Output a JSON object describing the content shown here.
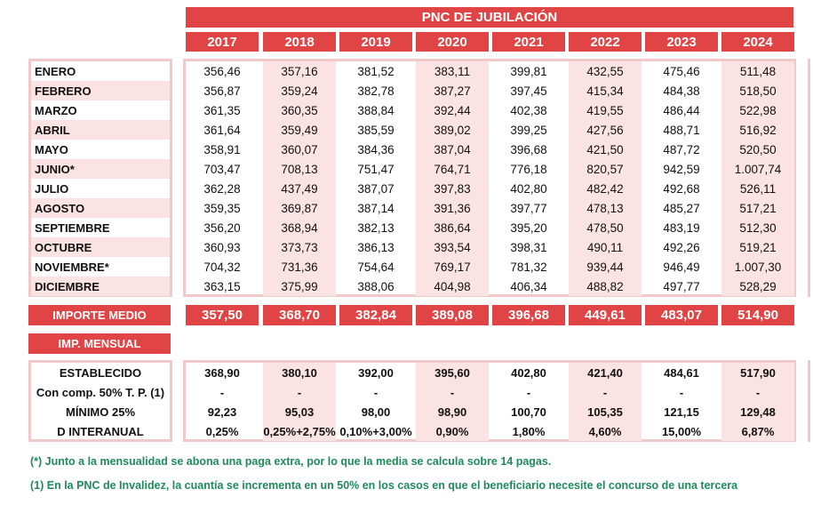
{
  "title": "PNC DE JUBILACIÓN",
  "years": [
    "2017",
    "2018",
    "2019",
    "2020",
    "2021",
    "2022",
    "2023",
    "2024"
  ],
  "months": [
    {
      "label": "ENERO",
      "values": [
        "356,46",
        "357,16",
        "381,52",
        "383,11",
        "399,81",
        "432,55",
        "475,46",
        "511,48"
      ]
    },
    {
      "label": "FEBRERO",
      "values": [
        "356,87",
        "359,24",
        "382,78",
        "387,27",
        "397,45",
        "415,34",
        "484,38",
        "518,50"
      ]
    },
    {
      "label": "MARZO",
      "values": [
        "361,35",
        "360,35",
        "388,84",
        "392,44",
        "402,38",
        "419,55",
        "486,44",
        "522,98"
      ]
    },
    {
      "label": "ABRIL",
      "values": [
        "361,64",
        "359,49",
        "385,59",
        "389,02",
        "399,25",
        "427,56",
        "488,71",
        "516,92"
      ]
    },
    {
      "label": "MAYO",
      "values": [
        "358,91",
        "360,07",
        "384,36",
        "387,04",
        "396,68",
        "421,50",
        "487,72",
        "520,50"
      ]
    },
    {
      "label": "JUNIO*",
      "values": [
        "703,47",
        "708,13",
        "751,47",
        "764,71",
        "776,18",
        "820,57",
        "942,59",
        "1.007,74"
      ]
    },
    {
      "label": "JULIO",
      "values": [
        "362,28",
        "437,49",
        "387,07",
        "397,83",
        "402,80",
        "482,42",
        "492,68",
        "526,11"
      ]
    },
    {
      "label": "AGOSTO",
      "values": [
        "359,35",
        "369,87",
        "387,14",
        "391,36",
        "397,77",
        "478,13",
        "485,27",
        "517,21"
      ]
    },
    {
      "label": "SEPTIEMBRE",
      "values": [
        "356,20",
        "368,94",
        "382,13",
        "386,64",
        "395,20",
        "478,50",
        "483,19",
        "512,30"
      ]
    },
    {
      "label": "OCTUBRE",
      "values": [
        "360,93",
        "373,73",
        "386,13",
        "393,54",
        "398,31",
        "490,11",
        "492,26",
        "519,21"
      ]
    },
    {
      "label": "NOVIEMBRE*",
      "values": [
        "704,32",
        "731,36",
        "754,64",
        "769,17",
        "781,32",
        "939,44",
        "946,49",
        "1.007,30"
      ]
    },
    {
      "label": "DICIEMBRE",
      "values": [
        "363,15",
        "375,99",
        "388,06",
        "404,98",
        "406,34",
        "488,82",
        "497,77",
        "528,29"
      ]
    }
  ],
  "importe_medio": {
    "label": "IMPORTE MEDIO",
    "values": [
      "357,50",
      "368,70",
      "382,84",
      "389,08",
      "396,68",
      "449,61",
      "483,07",
      "514,90"
    ]
  },
  "imp_mensual": {
    "label": "IMP. MENSUAL"
  },
  "mensual_rows": [
    {
      "label": "ESTABLECIDO",
      "values": [
        "368,90",
        "380,10",
        "392,00",
        "395,60",
        "402,80",
        "421,40",
        "484,61",
        "517,90"
      ]
    },
    {
      "label": "Con comp. 50% T. P. (1)",
      "values": [
        "-",
        "-",
        "-",
        "-",
        "-",
        "-",
        "-",
        "-"
      ]
    },
    {
      "label": "MÍNIMO 25%",
      "values": [
        "92,23",
        "95,03",
        "98,00",
        "98,90",
        "100,70",
        "105,35",
        "121,15",
        "129,48"
      ]
    },
    {
      "label": "D INTERANUAL",
      "values": [
        "0,25%",
        "0,25%+2,75%",
        "0,10%+3,00%",
        "0,90%",
        "1,80%",
        "4,60%",
        "15,00%",
        "6,87%"
      ]
    }
  ],
  "notes": [
    "(*) Junto a la mensualidad se abona una paga extra, por lo que la media se calcula sobre 14 pagas.",
    "(1) En la PNC de Invalidez, la cuantía se incrementa en un 50% en los casos en que el beneficiario necesite el concurso de una tercera"
  ],
  "colors": {
    "header_red": "#e04444",
    "pink": "#fbe3e4",
    "border_pink": "#f2c9cb",
    "note_green": "#1f8a5c"
  }
}
